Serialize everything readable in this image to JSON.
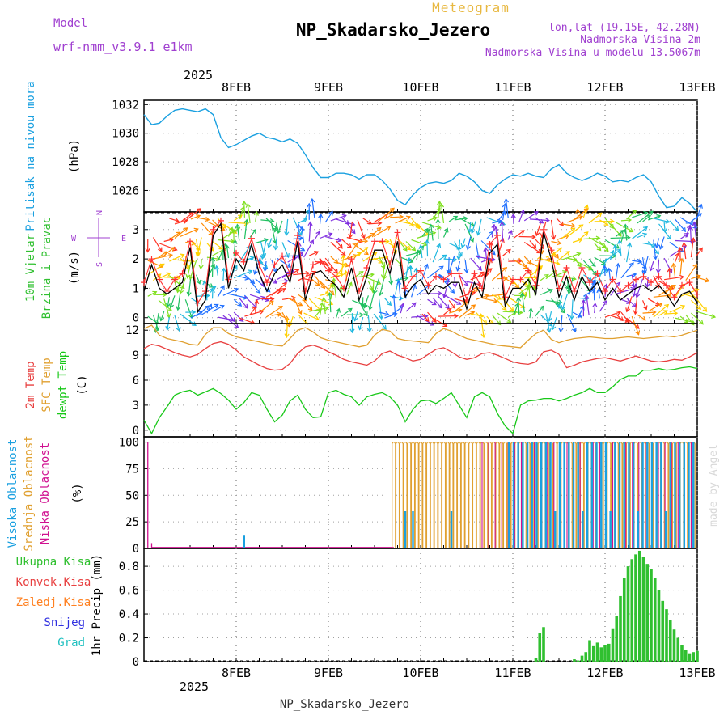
{
  "header": {
    "meteogram_label": "Meteogram",
    "model_label": "Model",
    "model_name": "wrf-nmm_v3.9.1 e1km",
    "station_title": "NP_Skadarsko_Jezero",
    "location_line": "lon,lat (19.15E, 42.28N)",
    "elevation_line": "Nadmorska Visina 2m",
    "model_elevation_line": "Nadmorska Visina u modelu 13.5067m",
    "footer_station": "NP_Skadarsko_Jezero",
    "credit": "made by Angel"
  },
  "time_axis": {
    "year": "2025",
    "day_labels": [
      "8FEB",
      "9FEB",
      "10FEB",
      "11FEB",
      "12FEB",
      "13FEB"
    ],
    "start_hour": -6,
    "end_hour": 138
  },
  "colors": {
    "pressure": "#1aa0e0",
    "temp2m": "#e84040",
    "sfc_temp": "#e0a030",
    "dewpoint": "#18c818",
    "wind_speed": "#000000",
    "wind_gust": "#ff3030",
    "high_cloud": "#1aa0e0",
    "mid_cloud": "#e0a030",
    "low_cloud": "#d01090",
    "total_precip": "#30c030",
    "conv_precip": "#e84040",
    "frozen_precip": "#ff8020",
    "snow": "#3030e0",
    "hail": "#20c0c0",
    "compass": "#a040d0"
  },
  "panels": {
    "pressure": {
      "label": "Pritisak na nivou mora",
      "unit": "(hPa)",
      "ticks": [
        "1032",
        "1030",
        "1028",
        "1026"
      ]
    },
    "wind": {
      "label_line1": "10m Vjetar",
      "label_line2": "Brzina i Pravac",
      "unit": "(m/s)",
      "ticks": [
        "3",
        "2",
        "1",
        "0"
      ],
      "compass_n": "N",
      "compass_w": "W",
      "compass_e": "E",
      "compass_s": "S"
    },
    "temperature": {
      "label_2m": "2m Temp",
      "label_sfc": "SFC Temp",
      "label_dew": "dewpt Temp",
      "unit": "(C)",
      "ticks": [
        "12",
        "9",
        "6",
        "3",
        "0"
      ]
    },
    "cloud": {
      "label_high": "Visoka Oblacnost",
      "label_mid": "Srednja Oblacnost",
      "label_low": "Niska Oblacnost",
      "unit": "(%)",
      "ticks": [
        "100",
        "75",
        "50",
        "25",
        "0"
      ]
    },
    "precip": {
      "label_total": "Ukupna Kisa",
      "label_conv": "Konvek.Kisa",
      "label_frozen": "Zaledj.Kisa",
      "label_snow": "Snijeg",
      "label_hail": "Grad",
      "unit": "1hr Precip (mm)",
      "ticks": [
        "0.8",
        "0.6",
        "0.4",
        "0.2",
        "0"
      ]
    }
  },
  "chart_data": [
    {
      "type": "line",
      "panel": "pressure",
      "ylim": [
        1024.5,
        1032.3
      ],
      "x_hours": [
        -6,
        -4,
        -2,
        0,
        2,
        4,
        6,
        8,
        10,
        12,
        14,
        16,
        18,
        20,
        22,
        24,
        26,
        28,
        30,
        32,
        34,
        36,
        38,
        40,
        42,
        44,
        46,
        48,
        50,
        52,
        54,
        56,
        58,
        60,
        62,
        64,
        66,
        68,
        70,
        72,
        74,
        76,
        78,
        80,
        82,
        84,
        86,
        88,
        90,
        92,
        94,
        96,
        98,
        100,
        102,
        104,
        106,
        108,
        110,
        112,
        114,
        116,
        118,
        120,
        122,
        124,
        126,
        128,
        130,
        132,
        134,
        136,
        138
      ],
      "series": [
        {
          "values": [
            1031.3,
            1030.6,
            1030.7,
            1031.2,
            1031.6,
            1031.7,
            1031.6,
            1031.5,
            1031.7,
            1031.3,
            1029.7,
            1029.0,
            1029.2,
            1029.5,
            1029.8,
            1030.0,
            1029.7,
            1029.6,
            1029.4,
            1029.6,
            1029.3,
            1028.5,
            1027.6,
            1026.9,
            1026.9,
            1027.2,
            1027.2,
            1027.1,
            1026.8,
            1027.1,
            1027.1,
            1026.7,
            1026.1,
            1025.3,
            1025.0,
            1025.7,
            1026.2,
            1026.5,
            1026.6,
            1026.5,
            1026.7,
            1027.2,
            1027.0,
            1026.6,
            1026.0,
            1025.8,
            1026.4,
            1026.8,
            1027.1,
            1027.0,
            1027.2,
            1027.0,
            1026.9,
            1027.5,
            1027.8,
            1027.2,
            1026.9,
            1026.7,
            1026.9,
            1027.2,
            1027.0,
            1026.6,
            1026.7,
            1026.6,
            1026.9,
            1027.1,
            1026.6,
            1025.6,
            1024.8,
            1024.9,
            1025.5,
            1025.1,
            1024.5
          ]
        }
      ]
    },
    {
      "type": "line",
      "panel": "wind",
      "ylim": [
        -0.2,
        3.6
      ],
      "x_hours": [
        -6,
        -4,
        -2,
        0,
        2,
        4,
        6,
        8,
        10,
        12,
        14,
        16,
        18,
        20,
        22,
        24,
        26,
        28,
        30,
        32,
        34,
        36,
        38,
        40,
        42,
        44,
        46,
        48,
        50,
        52,
        54,
        56,
        58,
        60,
        62,
        64,
        66,
        68,
        70,
        72,
        74,
        76,
        78,
        80,
        82,
        84,
        86,
        88,
        90,
        92,
        94,
        96,
        98,
        100,
        102,
        104,
        106,
        108,
        110,
        112,
        114,
        116,
        118,
        120,
        122,
        124,
        126,
        128,
        130,
        132,
        134,
        136,
        138
      ],
      "series": [
        {
          "name": "speed",
          "values": [
            0.9,
            1.8,
            1.0,
            0.8,
            1.0,
            1.2,
            2.4,
            0.2,
            0.6,
            2.8,
            3.2,
            1.0,
            2.0,
            1.6,
            2.5,
            1.5,
            0.9,
            1.5,
            1.8,
            1.2,
            2.6,
            0.6,
            1.5,
            1.6,
            1.3,
            1.1,
            0.7,
            1.7,
            0.6,
            1.4,
            2.3,
            2.3,
            1.5,
            2.6,
            0.7,
            1.1,
            1.3,
            0.8,
            1.1,
            1.0,
            1.2,
            1.2,
            0.3,
            1.2,
            0.7,
            2.2,
            2.5,
            0.4,
            1.0,
            1.0,
            1.3,
            0.8,
            2.9,
            2.0,
            0.7,
            1.4,
            0.6,
            1.4,
            0.9,
            1.2,
            0.6,
            1.0,
            0.6,
            0.8,
            1.0,
            1.1,
            0.9,
            1.1,
            0.8,
            0.4,
            0.8,
            0.9,
            0.5
          ]
        },
        {
          "name": "gust",
          "values": [
            1.2,
            2.0,
            1.3,
            0.9,
            1.3,
            1.5,
            2.6,
            0.5,
            0.9,
            3.0,
            3.3,
            1.3,
            2.2,
            1.9,
            2.7,
            1.8,
            1.2,
            1.8,
            2.1,
            1.5,
            2.8,
            0.9,
            1.8,
            1.9,
            1.6,
            1.4,
            1.0,
            2.0,
            0.9,
            1.7,
            2.6,
            2.6,
            1.8,
            2.9,
            1.0,
            1.4,
            1.6,
            1.1,
            1.4,
            1.3,
            1.5,
            1.5,
            0.6,
            1.5,
            1.0,
            2.5,
            2.8,
            0.7,
            1.3,
            1.3,
            1.6,
            1.1,
            3.0,
            2.3,
            1.0,
            1.7,
            0.9,
            1.7,
            1.2,
            1.5,
            0.9,
            1.3,
            0.9,
            1.1,
            1.3,
            1.4,
            1.2,
            1.4,
            1.1,
            0.7,
            1.1,
            1.2,
            0.8
          ]
        }
      ]
    },
    {
      "type": "line",
      "panel": "temperature",
      "ylim": [
        -0.8,
        12.8
      ],
      "x_hours": [
        -6,
        -4,
        -2,
        0,
        2,
        4,
        6,
        8,
        10,
        12,
        14,
        16,
        18,
        20,
        22,
        24,
        26,
        28,
        30,
        32,
        34,
        36,
        38,
        40,
        42,
        44,
        46,
        48,
        50,
        52,
        54,
        56,
        58,
        60,
        62,
        64,
        66,
        68,
        70,
        72,
        74,
        76,
        78,
        80,
        82,
        84,
        86,
        88,
        90,
        92,
        94,
        96,
        98,
        100,
        102,
        104,
        106,
        108,
        110,
        112,
        114,
        116,
        118,
        120,
        122,
        124,
        126,
        128,
        130,
        132,
        134,
        136,
        138
      ],
      "series": [
        {
          "name": "2m",
          "values": [
            9.8,
            10.3,
            10.1,
            9.7,
            9.3,
            9.0,
            8.8,
            9.1,
            9.8,
            10.4,
            10.6,
            10.3,
            9.6,
            8.8,
            8.3,
            7.8,
            7.4,
            7.2,
            7.3,
            8.0,
            9.2,
            10.0,
            10.2,
            9.9,
            9.4,
            9.0,
            8.5,
            8.2,
            8.0,
            7.8,
            8.3,
            9.2,
            9.5,
            9.0,
            8.7,
            8.3,
            8.5,
            9.1,
            9.7,
            9.9,
            9.4,
            8.8,
            8.5,
            8.7,
            9.2,
            9.3,
            9.0,
            8.6,
            8.2,
            8.0,
            7.9,
            8.2,
            9.4,
            9.6,
            9.1,
            7.5,
            7.8,
            8.2,
            8.4,
            8.6,
            8.7,
            8.5,
            8.3,
            8.6,
            8.9,
            8.6,
            8.3,
            8.2,
            8.3,
            8.5,
            8.4,
            8.8,
            9.3
          ]
        },
        {
          "name": "sfc",
          "values": [
            12.2,
            12.6,
            11.4,
            11.0,
            10.8,
            10.6,
            10.3,
            10.2,
            11.5,
            12.3,
            12.3,
            11.6,
            11.2,
            11.0,
            10.8,
            10.6,
            10.4,
            10.2,
            10.1,
            11.0,
            12.0,
            12.3,
            11.8,
            11.1,
            10.8,
            10.6,
            10.4,
            10.2,
            10.0,
            10.2,
            11.4,
            12.1,
            11.9,
            11.0,
            10.8,
            10.7,
            10.6,
            10.5,
            11.6,
            12.2,
            11.9,
            11.4,
            11.0,
            10.8,
            10.6,
            10.4,
            10.2,
            10.1,
            10.0,
            9.9,
            10.8,
            11.6,
            12.0,
            10.9,
            10.5,
            10.8,
            11.0,
            11.1,
            11.2,
            11.1,
            11.0,
            11.0,
            11.1,
            11.2,
            11.1,
            11.0,
            11.1,
            11.2,
            11.3,
            11.2,
            11.4,
            11.7,
            12.0
          ]
        },
        {
          "name": "dew",
          "values": [
            1.2,
            -0.4,
            1.5,
            2.8,
            4.2,
            4.6,
            4.8,
            4.2,
            4.6,
            5.0,
            4.4,
            3.6,
            2.5,
            3.3,
            4.5,
            4.2,
            2.5,
            1.0,
            1.8,
            3.5,
            4.2,
            2.5,
            1.5,
            1.6,
            4.5,
            4.8,
            4.3,
            4.0,
            3.0,
            4.0,
            4.3,
            4.5,
            4.0,
            3.0,
            1.0,
            2.5,
            3.5,
            3.6,
            3.2,
            3.8,
            4.5,
            3.0,
            1.5,
            4.0,
            4.5,
            4.0,
            2.0,
            0.5,
            -0.4,
            3.0,
            3.5,
            3.6,
            3.8,
            3.8,
            3.5,
            3.8,
            4.2,
            4.5,
            5.0,
            4.5,
            4.5,
            5.2,
            6.1,
            6.5,
            6.5,
            7.2,
            7.2,
            7.4,
            7.2,
            7.3,
            7.5,
            7.6,
            7.4
          ]
        }
      ]
    },
    {
      "type": "bar",
      "panel": "cloud",
      "ylim": [
        0,
        105
      ],
      "series": [
        {
          "name": "low_spikes",
          "points": [
            [
              -5,
              100
            ],
            [
              -4,
              5
            ]
          ]
        },
        {
          "name": "high_spikes",
          "points": [
            [
              20,
              12
            ]
          ]
        },
        {
          "name": "mid_from_hour",
          "start": 59,
          "value": 100
        },
        {
          "name": "low_from_hour",
          "start": 82,
          "value": 100
        },
        {
          "name": "high_from_hour",
          "start": 89,
          "value": 100
        }
      ]
    },
    {
      "type": "bar",
      "panel": "precip",
      "ylim": [
        0,
        0.95
      ],
      "x_hours": [
        96,
        97,
        98,
        106,
        107,
        108,
        109,
        110,
        111,
        112,
        113,
        114,
        115,
        116,
        117,
        118,
        119,
        120,
        121,
        122,
        123,
        124,
        125,
        126,
        127,
        128,
        129,
        130,
        131,
        132,
        133,
        134,
        135,
        136,
        137,
        138
      ],
      "series": [
        {
          "name": "total",
          "values": [
            0.03,
            0.24,
            0.29,
            0.02,
            0.01,
            0.05,
            0.08,
            0.18,
            0.13,
            0.16,
            0.12,
            0.14,
            0.15,
            0.28,
            0.38,
            0.55,
            0.7,
            0.8,
            0.86,
            0.9,
            0.93,
            0.88,
            0.82,
            0.78,
            0.7,
            0.6,
            0.51,
            0.44,
            0.35,
            0.27,
            0.2,
            0.14,
            0.1,
            0.07,
            0.08,
            0.09
          ]
        }
      ]
    }
  ]
}
